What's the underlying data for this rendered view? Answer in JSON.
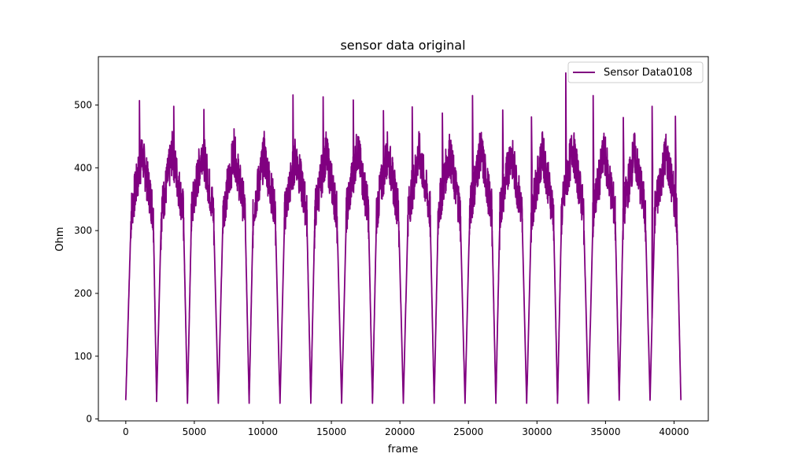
{
  "chart_data": {
    "type": "line",
    "title": "sensor data original",
    "xlabel": "frame",
    "ylabel": "Ohm",
    "xlim": [
      -2000,
      42500
    ],
    "ylim": [
      -3,
      577
    ],
    "xticks": [
      0,
      5000,
      10000,
      15000,
      20000,
      25000,
      30000,
      35000,
      40000
    ],
    "xtick_labels": [
      "0",
      "5000",
      "10000",
      "15000",
      "20000",
      "25000",
      "30000",
      "35000",
      "40000"
    ],
    "yticks": [
      0,
      100,
      200,
      300,
      400,
      500
    ],
    "ytick_labels": [
      "0",
      "100",
      "200",
      "300",
      "400",
      "500"
    ],
    "grid": false,
    "legend_position": "upper right",
    "series": [
      {
        "name": "Sensor Data0108",
        "color": "#800080",
        "x": [
          0,
          400,
          1200,
          2000,
          2250,
          2600,
          3400,
          4200,
          4500,
          4800,
          5600,
          6400,
          6750,
          7100,
          7900,
          8700,
          9000,
          9300,
          10100,
          10900,
          11250,
          11600,
          12400,
          13200,
          13500,
          13800,
          14600,
          15400,
          15750,
          16100,
          16900,
          17700,
          18000,
          18300,
          19100,
          19900,
          20250,
          20600,
          21400,
          22200,
          22500,
          22800,
          23600,
          24400,
          24750,
          25100,
          25900,
          26700,
          27000,
          27300,
          28100,
          28900,
          29250,
          29600,
          30400,
          31200,
          31500,
          31800,
          32600,
          33400,
          33750,
          34100,
          34900,
          35700,
          36000,
          36300,
          37100,
          37900,
          38250,
          38600,
          39400,
          40200,
          40500
        ],
        "y": [
          30,
          330,
          420,
          330,
          28,
          330,
          425,
          330,
          25,
          330,
          430,
          330,
          25,
          330,
          425,
          330,
          25,
          330,
          420,
          330,
          25,
          330,
          420,
          330,
          25,
          330,
          425,
          330,
          25,
          330,
          430,
          330,
          25,
          330,
          425,
          330,
          25,
          330,
          425,
          330,
          25,
          330,
          425,
          330,
          25,
          330,
          430,
          330,
          25,
          330,
          425,
          330,
          25,
          330,
          425,
          330,
          25,
          330,
          435,
          330,
          25,
          330,
          425,
          330,
          30,
          330,
          425,
          330,
          30,
          330,
          425,
          330,
          30
        ],
        "spikes": [
          [
            1000,
            507
          ],
          [
            3500,
            498
          ],
          [
            5700,
            493
          ],
          [
            7900,
            462
          ],
          [
            10100,
            458
          ],
          [
            12200,
            516
          ],
          [
            14400,
            513
          ],
          [
            16600,
            508
          ],
          [
            18800,
            491
          ],
          [
            20900,
            497
          ],
          [
            23100,
            487
          ],
          [
            25300,
            515
          ],
          [
            27500,
            492
          ],
          [
            29600,
            481
          ],
          [
            32100,
            551
          ],
          [
            34100,
            515
          ],
          [
            36300,
            480
          ],
          [
            38400,
            498
          ],
          [
            40100,
            482
          ]
        ]
      }
    ]
  }
}
